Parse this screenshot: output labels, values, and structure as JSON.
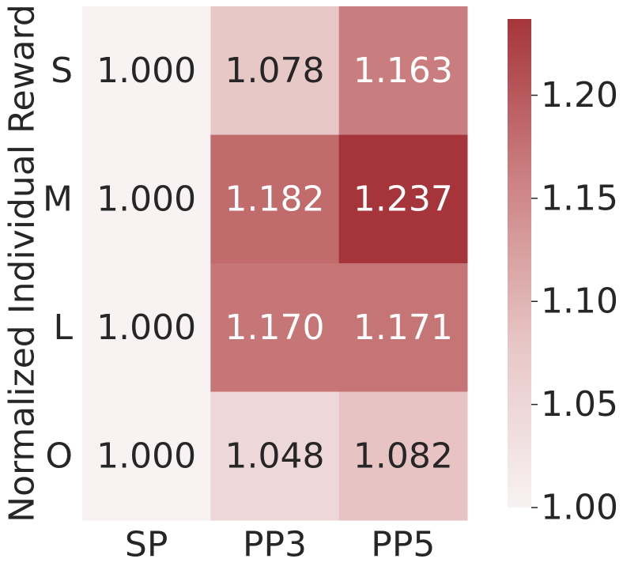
{
  "chart_data": {
    "type": "heatmap",
    "ylabel": "Normalized Individual Reward",
    "x_categories": [
      "SP",
      "PP3",
      "PP5"
    ],
    "y_categories": [
      "S",
      "M",
      "L",
      "O"
    ],
    "values": [
      [
        1.0,
        1.078,
        1.163
      ],
      [
        1.0,
        1.182,
        1.237
      ],
      [
        1.0,
        1.17,
        1.171
      ],
      [
        1.0,
        1.048,
        1.082
      ]
    ],
    "value_labels": [
      [
        "1.000",
        "1.078",
        "1.163"
      ],
      [
        "1.000",
        "1.182",
        "1.237"
      ],
      [
        "1.000",
        "1.170",
        "1.171"
      ],
      [
        "1.000",
        "1.048",
        "1.082"
      ]
    ],
    "colormap": [
      "#f8f2f3",
      "#e8c6c6",
      "#cd8283",
      "#a5353b"
    ],
    "colorbar_lim": [
      1.0,
      1.237
    ],
    "colorbar_ticks": [
      {
        "value": 1.0,
        "label": "1.00"
      },
      1.05,
      {
        "value": 1.1,
        "label": "1.10"
      },
      1.15,
      {
        "value": 1.2,
        "label": "1.20"
      }
    ]
  }
}
